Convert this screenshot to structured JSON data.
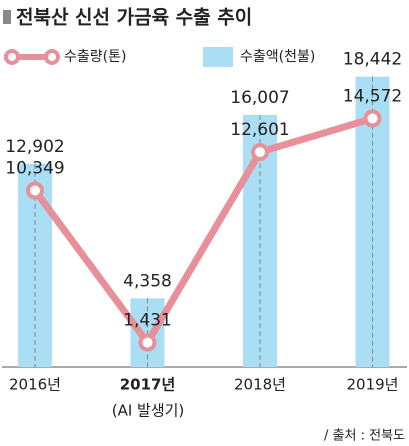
{
  "chart_data": {
    "type": "bar",
    "title": "전북산 신선 가금육 수출 추이",
    "categories": [
      "2016년",
      "2017년",
      "2018년",
      "2019년"
    ],
    "annotation": "(AI 발생기)",
    "source": "/ 출처 : 전북도",
    "ylim": [
      0,
      19500
    ],
    "y2lim": [
      0,
      18000
    ],
    "series": [
      {
        "name": "수출량(톤)",
        "type": "line",
        "axis": "y2",
        "color": "#e8909a",
        "values": [
          10349,
          1431,
          12601,
          14572
        ],
        "value_labels": [
          "10,349",
          "1,431",
          "12,601",
          "14,572"
        ]
      },
      {
        "name": "수출액(천불)",
        "type": "bar",
        "color": "#a9def4",
        "values": [
          12902,
          4358,
          16007,
          18442
        ],
        "value_labels": [
          "12,902",
          "4,358",
          "16,007",
          "18,442"
        ]
      }
    ]
  }
}
